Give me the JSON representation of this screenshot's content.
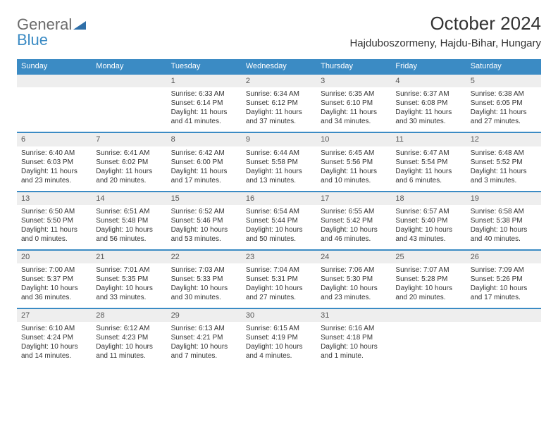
{
  "logo": {
    "text1": "General",
    "text2": "Blue"
  },
  "title": "October 2024",
  "location": "Hajduboszormeny, Hajdu-Bihar, Hungary",
  "colors": {
    "header_bg": "#3b8bc4",
    "daynum_bg": "#eeeeee"
  },
  "weekdays": [
    "Sunday",
    "Monday",
    "Tuesday",
    "Wednesday",
    "Thursday",
    "Friday",
    "Saturday"
  ],
  "weeks": [
    [
      null,
      null,
      {
        "n": "1",
        "sr": "6:33 AM",
        "ss": "6:14 PM",
        "dl": "11 hours and 41 minutes."
      },
      {
        "n": "2",
        "sr": "6:34 AM",
        "ss": "6:12 PM",
        "dl": "11 hours and 37 minutes."
      },
      {
        "n": "3",
        "sr": "6:35 AM",
        "ss": "6:10 PM",
        "dl": "11 hours and 34 minutes."
      },
      {
        "n": "4",
        "sr": "6:37 AM",
        "ss": "6:08 PM",
        "dl": "11 hours and 30 minutes."
      },
      {
        "n": "5",
        "sr": "6:38 AM",
        "ss": "6:05 PM",
        "dl": "11 hours and 27 minutes."
      }
    ],
    [
      {
        "n": "6",
        "sr": "6:40 AM",
        "ss": "6:03 PM",
        "dl": "11 hours and 23 minutes."
      },
      {
        "n": "7",
        "sr": "6:41 AM",
        "ss": "6:02 PM",
        "dl": "11 hours and 20 minutes."
      },
      {
        "n": "8",
        "sr": "6:42 AM",
        "ss": "6:00 PM",
        "dl": "11 hours and 17 minutes."
      },
      {
        "n": "9",
        "sr": "6:44 AM",
        "ss": "5:58 PM",
        "dl": "11 hours and 13 minutes."
      },
      {
        "n": "10",
        "sr": "6:45 AM",
        "ss": "5:56 PM",
        "dl": "11 hours and 10 minutes."
      },
      {
        "n": "11",
        "sr": "6:47 AM",
        "ss": "5:54 PM",
        "dl": "11 hours and 6 minutes."
      },
      {
        "n": "12",
        "sr": "6:48 AM",
        "ss": "5:52 PM",
        "dl": "11 hours and 3 minutes."
      }
    ],
    [
      {
        "n": "13",
        "sr": "6:50 AM",
        "ss": "5:50 PM",
        "dl": "11 hours and 0 minutes."
      },
      {
        "n": "14",
        "sr": "6:51 AM",
        "ss": "5:48 PM",
        "dl": "10 hours and 56 minutes."
      },
      {
        "n": "15",
        "sr": "6:52 AM",
        "ss": "5:46 PM",
        "dl": "10 hours and 53 minutes."
      },
      {
        "n": "16",
        "sr": "6:54 AM",
        "ss": "5:44 PM",
        "dl": "10 hours and 50 minutes."
      },
      {
        "n": "17",
        "sr": "6:55 AM",
        "ss": "5:42 PM",
        "dl": "10 hours and 46 minutes."
      },
      {
        "n": "18",
        "sr": "6:57 AM",
        "ss": "5:40 PM",
        "dl": "10 hours and 43 minutes."
      },
      {
        "n": "19",
        "sr": "6:58 AM",
        "ss": "5:38 PM",
        "dl": "10 hours and 40 minutes."
      }
    ],
    [
      {
        "n": "20",
        "sr": "7:00 AM",
        "ss": "5:37 PM",
        "dl": "10 hours and 36 minutes."
      },
      {
        "n": "21",
        "sr": "7:01 AM",
        "ss": "5:35 PM",
        "dl": "10 hours and 33 minutes."
      },
      {
        "n": "22",
        "sr": "7:03 AM",
        "ss": "5:33 PM",
        "dl": "10 hours and 30 minutes."
      },
      {
        "n": "23",
        "sr": "7:04 AM",
        "ss": "5:31 PM",
        "dl": "10 hours and 27 minutes."
      },
      {
        "n": "24",
        "sr": "7:06 AM",
        "ss": "5:30 PM",
        "dl": "10 hours and 23 minutes."
      },
      {
        "n": "25",
        "sr": "7:07 AM",
        "ss": "5:28 PM",
        "dl": "10 hours and 20 minutes."
      },
      {
        "n": "26",
        "sr": "7:09 AM",
        "ss": "5:26 PM",
        "dl": "10 hours and 17 minutes."
      }
    ],
    [
      {
        "n": "27",
        "sr": "6:10 AM",
        "ss": "4:24 PM",
        "dl": "10 hours and 14 minutes."
      },
      {
        "n": "28",
        "sr": "6:12 AM",
        "ss": "4:23 PM",
        "dl": "10 hours and 11 minutes."
      },
      {
        "n": "29",
        "sr": "6:13 AM",
        "ss": "4:21 PM",
        "dl": "10 hours and 7 minutes."
      },
      {
        "n": "30",
        "sr": "6:15 AM",
        "ss": "4:19 PM",
        "dl": "10 hours and 4 minutes."
      },
      {
        "n": "31",
        "sr": "6:16 AM",
        "ss": "4:18 PM",
        "dl": "10 hours and 1 minute."
      },
      null,
      null
    ]
  ]
}
